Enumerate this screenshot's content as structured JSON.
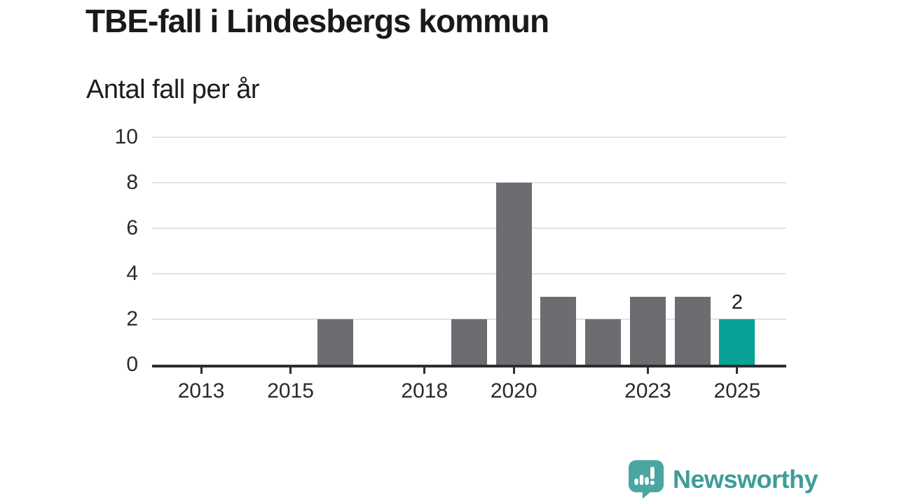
{
  "chart_data": {
    "type": "bar",
    "title": "TBE-fall i Lindesbergs kommun",
    "subtitle": "Antal fall per år",
    "xlabel": "",
    "ylabel": "Antal fall per år",
    "categories": [
      2013,
      2014,
      2015,
      2016,
      2017,
      2018,
      2019,
      2020,
      2021,
      2022,
      2023,
      2024,
      2025
    ],
    "values": [
      0,
      0,
      0,
      2,
      0,
      0,
      2,
      8,
      3,
      2,
      3,
      3,
      2
    ],
    "xticks": [
      2013,
      2015,
      2018,
      2020,
      2023,
      2025
    ],
    "yticks": [
      0,
      2,
      4,
      6,
      8,
      10
    ],
    "ylim": [
      0,
      10
    ],
    "grid": true,
    "legend": false,
    "highlight": {
      "category": 2025,
      "label": "2"
    },
    "colors": {
      "bar": "#6E6C70",
      "highlight": "#07A398",
      "gridline": "#E3E2E3",
      "axis": "#2D2D2D",
      "tick_label": "#2B2B2B",
      "title": "#1A1A18",
      "subtitle": "#1C1C1C",
      "value_label": "#1A1A1A"
    }
  },
  "footer": {
    "brand": "Newsworthy",
    "logo_icon": "newsworthy-chart-speech-bubble-icon",
    "colors": {
      "icon": "#4BA5A0",
      "icon_marks": "#FFFFFF",
      "wordmark": "#3D9D98"
    }
  }
}
